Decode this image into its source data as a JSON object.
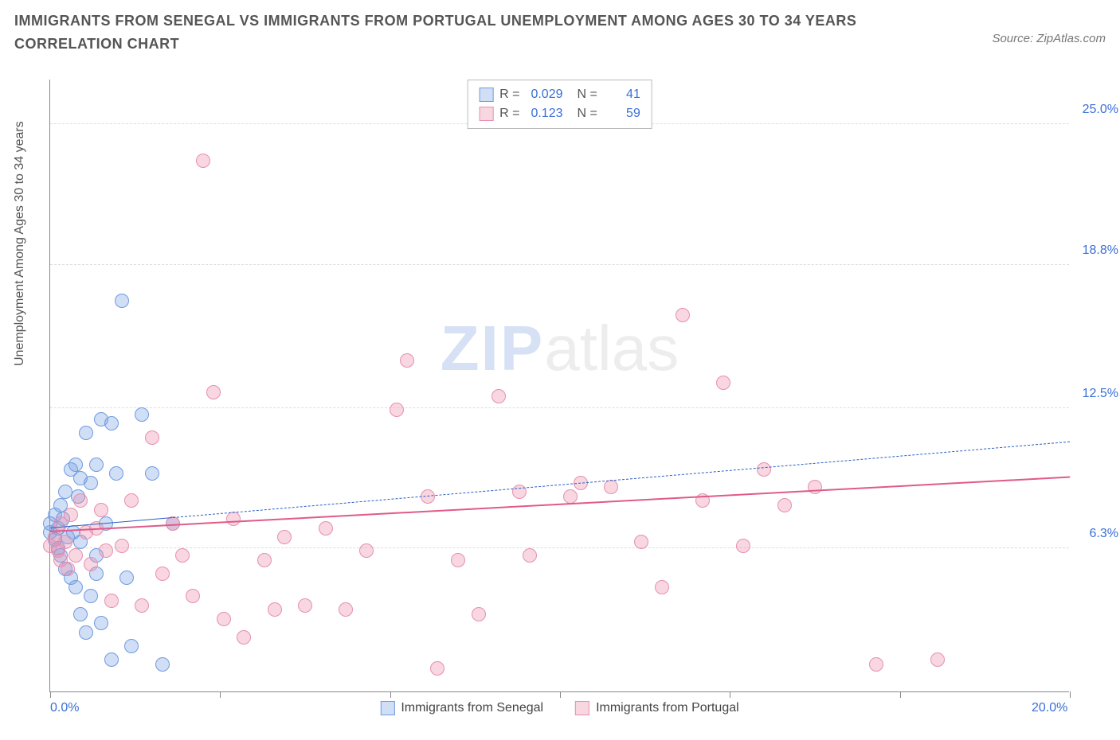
{
  "title": "IMMIGRANTS FROM SENEGAL VS IMMIGRANTS FROM PORTUGAL UNEMPLOYMENT AMONG AGES 30 TO 34 YEARS CORRELATION CHART",
  "source": "Source: ZipAtlas.com",
  "ylabel": "Unemployment Among Ages 30 to 34 years",
  "watermark_a": "ZIP",
  "watermark_b": "atlas",
  "chart": {
    "type": "scatter",
    "xlim": [
      0,
      20
    ],
    "ylim": [
      0,
      27
    ],
    "x_ticks_at": [
      0,
      3.33,
      6.67,
      10,
      13.33,
      16.67,
      20
    ],
    "x_tick_labels": {
      "0": "0.0%",
      "20": "20.0%"
    },
    "y_grid": [
      {
        "v": 6.3,
        "label": "6.3%"
      },
      {
        "v": 12.5,
        "label": "12.5%"
      },
      {
        "v": 18.8,
        "label": "18.8%"
      },
      {
        "v": 25.0,
        "label": "25.0%"
      }
    ],
    "background_color": "#ffffff",
    "grid_color": "#dddddd",
    "axis_color": "#888888",
    "tick_label_color": "#3a6fd8",
    "marker_radius": 9,
    "marker_stroke": 1.2,
    "series": [
      {
        "name": "Immigrants from Senegal",
        "fill": "rgba(120,160,230,0.35)",
        "stroke": "#6f9be0",
        "R": "0.029",
        "N": "41",
        "trend": {
          "x0": 0,
          "y0": 7.2,
          "x1": 20,
          "y1": 11.0,
          "color": "#2b5fc4",
          "dash": "6 6",
          "width": 1.6,
          "solid_until_x": 2.4
        },
        "points": [
          [
            0.0,
            7.0
          ],
          [
            0.0,
            7.4
          ],
          [
            0.1,
            6.7
          ],
          [
            0.1,
            7.8
          ],
          [
            0.15,
            6.3
          ],
          [
            0.15,
            7.2
          ],
          [
            0.2,
            6.0
          ],
          [
            0.2,
            8.2
          ],
          [
            0.25,
            7.6
          ],
          [
            0.3,
            5.4
          ],
          [
            0.3,
            8.8
          ],
          [
            0.35,
            6.8
          ],
          [
            0.4,
            9.8
          ],
          [
            0.4,
            5.0
          ],
          [
            0.45,
            7.0
          ],
          [
            0.5,
            10.0
          ],
          [
            0.5,
            4.6
          ],
          [
            0.55,
            8.6
          ],
          [
            0.6,
            9.4
          ],
          [
            0.6,
            3.4
          ],
          [
            0.7,
            11.4
          ],
          [
            0.7,
            2.6
          ],
          [
            0.8,
            4.2
          ],
          [
            0.8,
            9.2
          ],
          [
            0.9,
            10.0
          ],
          [
            0.9,
            5.2
          ],
          [
            1.0,
            12.0
          ],
          [
            1.0,
            3.0
          ],
          [
            1.1,
            7.4
          ],
          [
            1.2,
            11.8
          ],
          [
            1.2,
            1.4
          ],
          [
            1.3,
            9.6
          ],
          [
            1.4,
            17.2
          ],
          [
            1.5,
            5.0
          ],
          [
            1.6,
            2.0
          ],
          [
            1.8,
            12.2
          ],
          [
            2.0,
            9.6
          ],
          [
            2.2,
            1.2
          ],
          [
            2.4,
            7.4
          ],
          [
            0.9,
            6.0
          ],
          [
            0.6,
            6.6
          ]
        ]
      },
      {
        "name": "Immigrants from Portugal",
        "fill": "rgba(235,140,170,0.35)",
        "stroke": "#e78fb0",
        "R": "0.123",
        "N": "59",
        "trend": {
          "x0": 0,
          "y0": 7.0,
          "x1": 20,
          "y1": 9.4,
          "color": "#e05a8a",
          "dash": "",
          "width": 2.4,
          "solid_until_x": 20
        },
        "points": [
          [
            0.0,
            6.4
          ],
          [
            0.1,
            6.8
          ],
          [
            0.15,
            6.2
          ],
          [
            0.2,
            5.8
          ],
          [
            0.2,
            7.4
          ],
          [
            0.3,
            6.6
          ],
          [
            0.35,
            5.4
          ],
          [
            0.4,
            7.8
          ],
          [
            0.5,
            6.0
          ],
          [
            0.6,
            8.4
          ],
          [
            0.7,
            7.0
          ],
          [
            0.8,
            5.6
          ],
          [
            1.0,
            8.0
          ],
          [
            1.2,
            4.0
          ],
          [
            1.4,
            6.4
          ],
          [
            1.6,
            8.4
          ],
          [
            1.8,
            3.8
          ],
          [
            2.0,
            11.2
          ],
          [
            2.2,
            5.2
          ],
          [
            2.4,
            7.4
          ],
          [
            2.6,
            6.0
          ],
          [
            2.8,
            4.2
          ],
          [
            3.0,
            23.4
          ],
          [
            3.2,
            13.2
          ],
          [
            3.4,
            3.2
          ],
          [
            3.6,
            7.6
          ],
          [
            3.8,
            2.4
          ],
          [
            4.2,
            5.8
          ],
          [
            4.4,
            3.6
          ],
          [
            4.6,
            6.8
          ],
          [
            5.0,
            3.8
          ],
          [
            5.4,
            7.2
          ],
          [
            5.8,
            3.6
          ],
          [
            6.2,
            6.2
          ],
          [
            6.8,
            12.4
          ],
          [
            7.0,
            14.6
          ],
          [
            7.4,
            8.6
          ],
          [
            7.6,
            1.0
          ],
          [
            8.0,
            5.8
          ],
          [
            8.4,
            3.4
          ],
          [
            8.8,
            13.0
          ],
          [
            9.2,
            8.8
          ],
          [
            9.4,
            6.0
          ],
          [
            10.2,
            8.6
          ],
          [
            10.4,
            9.2
          ],
          [
            11.0,
            9.0
          ],
          [
            11.6,
            6.6
          ],
          [
            12.0,
            4.6
          ],
          [
            12.4,
            16.6
          ],
          [
            12.8,
            8.4
          ],
          [
            13.2,
            13.6
          ],
          [
            13.6,
            6.4
          ],
          [
            14.0,
            9.8
          ],
          [
            14.4,
            8.2
          ],
          [
            15.0,
            9.0
          ],
          [
            16.2,
            1.2
          ],
          [
            17.4,
            1.4
          ],
          [
            0.9,
            7.2
          ],
          [
            1.1,
            6.2
          ]
        ]
      }
    ]
  },
  "legend_bottom": [
    {
      "label": "Immigrants from Senegal",
      "fill": "rgba(120,160,230,0.35)",
      "stroke": "#6f9be0"
    },
    {
      "label": "Immigrants from Portugal",
      "fill": "rgba(235,140,170,0.35)",
      "stroke": "#e78fb0"
    }
  ]
}
